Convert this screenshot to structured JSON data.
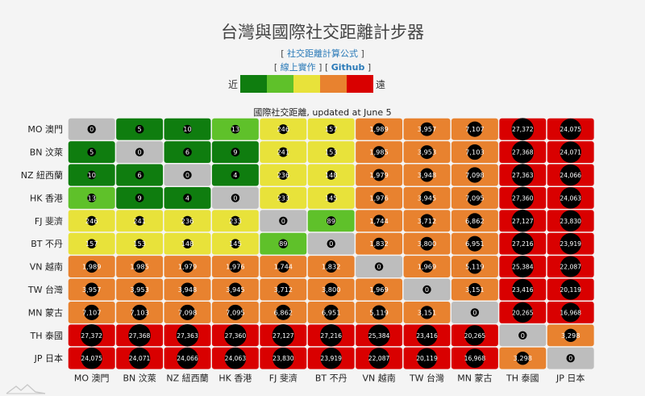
{
  "page": {
    "title": "台灣與國際社交距離計步器",
    "links_row1": {
      "open": "[ ",
      "label": "社交距離計算公式",
      "close": " ]"
    },
    "links_row2": {
      "open1": "[ ",
      "label1": "線上實作",
      "mid": " ] [ ",
      "label2": "Github",
      "close2": " ]"
    },
    "legend": {
      "near": "近",
      "far": "遠",
      "colors": [
        "#0f7d0f",
        "#5fc12a",
        "#e8e23a",
        "#e8822f",
        "#d90000"
      ]
    },
    "subtitle": "國際社交距離, updated at June 5"
  },
  "chart_data": {
    "type": "heatmap",
    "title": "國際社交距離, updated at June 5",
    "row_labels": [
      "MO 澳門",
      "BN 汶萊",
      "NZ 紐西蘭",
      "HK 香港",
      "FJ 斐濟",
      "BT 不丹",
      "VN 越南",
      "TW 台灣",
      "MN 蒙古",
      "TH 泰國",
      "JP 日本"
    ],
    "col_labels": [
      "MO 澳門",
      "BN 汶萊",
      "NZ 紐西蘭",
      "HK 香港",
      "FJ 斐濟",
      "BT 不丹",
      "VN 越南",
      "TW 台灣",
      "MN 蒙古",
      "TH 泰國",
      "JP 日本"
    ],
    "values": [
      [
        0,
        5,
        10,
        13,
        246,
        157,
        1989,
        3957,
        7107,
        27372,
        24075
      ],
      [
        5,
        0,
        6,
        9,
        241,
        153,
        1985,
        3953,
        7103,
        27368,
        24071
      ],
      [
        10,
        6,
        0,
        4,
        236,
        148,
        1979,
        3948,
        7098,
        27363,
        24066
      ],
      [
        13,
        9,
        4,
        0,
        233,
        145,
        1976,
        3945,
        7095,
        27360,
        24063
      ],
      [
        246,
        241,
        236,
        233,
        0,
        89,
        1744,
        3712,
        6862,
        27127,
        23830
      ],
      [
        157,
        153,
        148,
        145,
        89,
        0,
        1832,
        3800,
        6951,
        27216,
        23919
      ],
      [
        1989,
        1985,
        1979,
        1976,
        1744,
        1832,
        0,
        1969,
        5119,
        25384,
        22087
      ],
      [
        3957,
        3953,
        3948,
        3945,
        3712,
        3800,
        1969,
        0,
        3151,
        23416,
        20119
      ],
      [
        7107,
        7103,
        7098,
        7095,
        6862,
        6951,
        5119,
        3151,
        0,
        20265,
        16968
      ],
      [
        27372,
        27368,
        27363,
        27360,
        27127,
        27216,
        25384,
        23416,
        20265,
        0,
        3298
      ],
      [
        24075,
        24071,
        24066,
        24063,
        23830,
        23919,
        22087,
        20119,
        16968,
        3298,
        0
      ]
    ],
    "labels": [
      [
        "0",
        "5",
        "10",
        "13",
        "246",
        "157",
        "1,989",
        "3,957",
        "7,107",
        "27,372",
        "24,075"
      ],
      [
        "5",
        "0",
        "6",
        "9",
        "241",
        "153",
        "1,985",
        "3,953",
        "7,103",
        "27,368",
        "24,071"
      ],
      [
        "10",
        "6",
        "0",
        "4",
        "236",
        "148",
        "1,979",
        "3,948",
        "7,098",
        "27,363",
        "24,066"
      ],
      [
        "13",
        "9",
        "4",
        "0",
        "233",
        "145",
        "1,976",
        "3,945",
        "7,095",
        "27,360",
        "24,063"
      ],
      [
        "246",
        "241",
        "236",
        "233",
        "0",
        "89",
        "1,744",
        "3,712",
        "6,862",
        "27,127",
        "23,830"
      ],
      [
        "157",
        "153",
        "148",
        "145",
        "89",
        "0",
        "1,832",
        "3,800",
        "6,951",
        "27,216",
        "23,919"
      ],
      [
        "1,989",
        "1,985",
        "1,979",
        "1,976",
        "1,744",
        "1,832",
        "0",
        "1,969",
        "5,119",
        "25,384",
        "22,087"
      ],
      [
        "3,957",
        "3,953",
        "3,948",
        "3,945",
        "3,712",
        "3,800",
        "1,969",
        "0",
        "3,151",
        "23,416",
        "20,119"
      ],
      [
        "7,107",
        "7,103",
        "7,098",
        "7,095",
        "6,862",
        "6,951",
        "5,119",
        "3,151",
        "0",
        "20,265",
        "16,968"
      ],
      [
        "27,372",
        "27,368",
        "27,363",
        "27,360",
        "27,127",
        "27,216",
        "25,384",
        "23,416",
        "20,265",
        "0",
        "3,298"
      ],
      [
        "24,075",
        "24,071",
        "24,066",
        "24,063",
        "23,830",
        "23,919",
        "22,087",
        "20,119",
        "16,968",
        "3,298",
        "0"
      ]
    ],
    "color_levels": [
      {
        "max": 0,
        "color": "#bdbdbd"
      },
      {
        "max": 10,
        "color": "#0f7d0f"
      },
      {
        "max": 100,
        "color": "#5fc12a"
      },
      {
        "max": 1000,
        "color": "#e8e23a"
      },
      {
        "max": 10000,
        "color": "#e8822f"
      },
      {
        "max": 100000,
        "color": "#d90000"
      }
    ],
    "bubble_color": "#000000"
  }
}
